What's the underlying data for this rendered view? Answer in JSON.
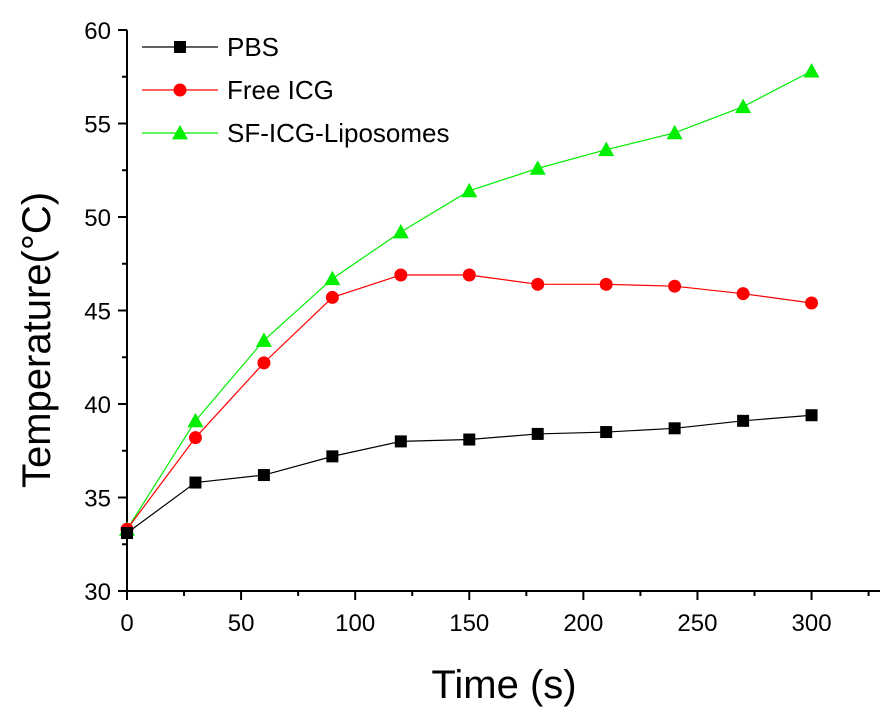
{
  "chart_data": {
    "type": "line",
    "title": "",
    "xlabel": "Time (s)",
    "ylabel": "Temperature(°C)",
    "xlim": [
      0,
      330
    ],
    "ylim": [
      30,
      60
    ],
    "xticks": [
      0,
      50,
      100,
      150,
      200,
      250,
      300
    ],
    "yticks": [
      30,
      35,
      40,
      45,
      50,
      55,
      60
    ],
    "xtick_labels": [
      "0",
      "50",
      "100",
      "150",
      "200",
      "250",
      "300"
    ],
    "ytick_labels": [
      "30",
      "35",
      "40",
      "45",
      "50",
      "55",
      "60"
    ],
    "grid": false,
    "legend_position": "top-left",
    "x": [
      0,
      30,
      60,
      90,
      120,
      150,
      180,
      210,
      240,
      270,
      300
    ],
    "series": [
      {
        "name": "PBS",
        "color": "#000000",
        "marker": "square",
        "values": [
          33.1,
          35.8,
          36.2,
          37.2,
          38.0,
          38.1,
          38.4,
          38.5,
          38.7,
          39.1,
          39.4
        ]
      },
      {
        "name": "Free ICG",
        "color": "#ff0000",
        "marker": "circle",
        "values": [
          33.3,
          38.2,
          42.2,
          45.7,
          46.9,
          46.9,
          46.4,
          46.4,
          46.3,
          45.9,
          45.4
        ]
      },
      {
        "name": "SF-ICG-Liposomes",
        "color": "#00ee00",
        "marker": "triangle",
        "values": [
          33.3,
          39.1,
          43.4,
          46.7,
          49.2,
          51.4,
          52.6,
          53.6,
          54.5,
          55.9,
          57.8
        ]
      }
    ]
  }
}
